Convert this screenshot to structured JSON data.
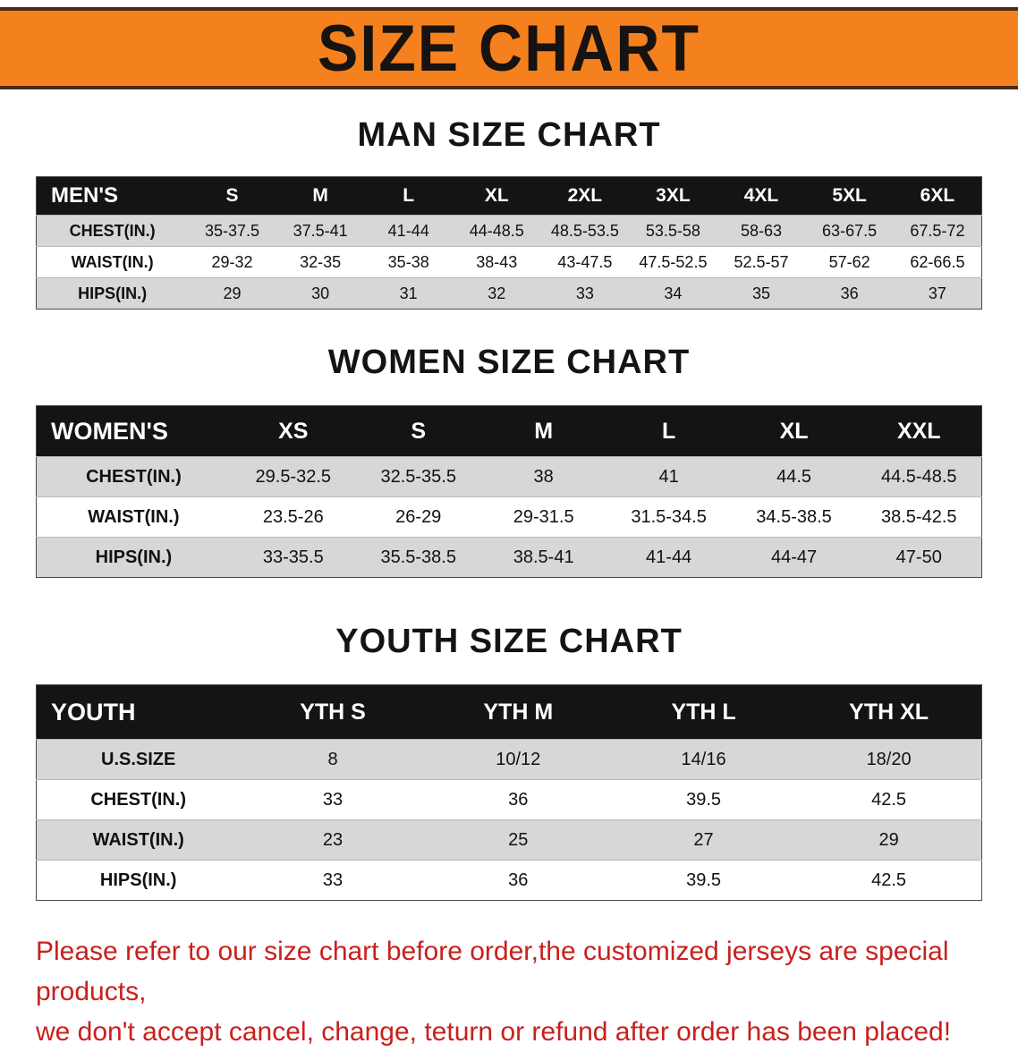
{
  "banner": {
    "title": "SIZE CHART"
  },
  "sections": [
    {
      "heading": "MAN SIZE CHART",
      "table": {
        "header": [
          "MEN'S",
          "S",
          "M",
          "L",
          "XL",
          "2XL",
          "3XL",
          "4XL",
          "5XL",
          "6XL"
        ],
        "rows": [
          [
            "CHEST(IN.)",
            "35-37.5",
            "37.5-41",
            "41-44",
            "44-48.5",
            "48.5-53.5",
            "53.5-58",
            "58-63",
            "63-67.5",
            "67.5-72"
          ],
          [
            "WAIST(IN.)",
            "29-32",
            "32-35",
            "35-38",
            "38-43",
            "43-47.5",
            "47.5-52.5",
            "52.5-57",
            "57-62",
            "62-66.5"
          ],
          [
            "HIPS(IN.)",
            "29",
            "30",
            "31",
            "32",
            "33",
            "34",
            "35",
            "36",
            "37"
          ]
        ]
      }
    },
    {
      "heading": "WOMEN SIZE CHART",
      "table": {
        "header": [
          "WOMEN'S",
          "XS",
          "S",
          "M",
          "L",
          "XL",
          "XXL"
        ],
        "rows": [
          [
            "CHEST(IN.)",
            "29.5-32.5",
            "32.5-35.5",
            "38",
            "41",
            "44.5",
            "44.5-48.5"
          ],
          [
            "WAIST(IN.)",
            "23.5-26",
            "26-29",
            "29-31.5",
            "31.5-34.5",
            "34.5-38.5",
            "38.5-42.5"
          ],
          [
            "HIPS(IN.)",
            "33-35.5",
            "35.5-38.5",
            "38.5-41",
            "41-44",
            "44-47",
            "47-50"
          ]
        ]
      }
    },
    {
      "heading": "YOUTH SIZE CHART",
      "table": {
        "header": [
          "YOUTH",
          "YTH S",
          "YTH M",
          "YTH L",
          "YTH XL"
        ],
        "rows": [
          [
            "U.S.SIZE",
            "8",
            "10/12",
            "14/16",
            "18/20"
          ],
          [
            "CHEST(IN.)",
            "33",
            "36",
            "39.5",
            "42.5"
          ],
          [
            "WAIST(IN.)",
            "23",
            "25",
            "27",
            "29"
          ],
          [
            "HIPS(IN.)",
            "33",
            "36",
            "39.5",
            "42.5"
          ]
        ]
      }
    }
  ],
  "disclaimer": {
    "line1": "Please refer to our size chart before order,the customized jerseys are special products,",
    "line2": "we don't accept cancel, change, teturn or refund after order has been placed!"
  },
  "colors": {
    "banner_orange": "#F5811E",
    "banner_line_brown": "#4A2B12",
    "table_header_black": "#141414",
    "row_gray": "#D7D7D7",
    "disclaimer_red": "#C9201D"
  }
}
